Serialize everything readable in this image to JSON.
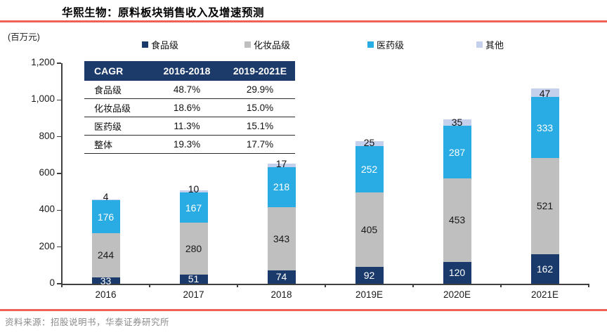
{
  "header": {
    "title": "华熙生物：原料板块销售收入及增速预测",
    "unit_label": "(百万元)"
  },
  "legend": [
    {
      "key": "food",
      "label": "食品级",
      "color": "#1a3a6b"
    },
    {
      "key": "cosmetic",
      "label": "化妆品级",
      "color": "#bfbfbf"
    },
    {
      "key": "pharma",
      "label": "医药级",
      "color": "#29abe3"
    },
    {
      "key": "other",
      "label": "其他",
      "color": "#c5d1ec"
    }
  ],
  "chart_data": {
    "type": "bar",
    "stacked": true,
    "title": "华熙生物：原料板块销售收入及增速预测",
    "xlabel": "",
    "ylabel": "(百万元)",
    "categories": [
      "2016",
      "2017",
      "2018",
      "2019E",
      "2020E",
      "2021E"
    ],
    "series": [
      {
        "key": "food",
        "name": "食品级",
        "color": "#1a3a6b",
        "label_color": "#ffffff",
        "values": [
          33,
          51,
          74,
          92,
          120,
          162
        ]
      },
      {
        "key": "cosmetic",
        "name": "化妆品级",
        "color": "#bfbfbf",
        "label_color": "#1a1a1a",
        "values": [
          244,
          280,
          343,
          405,
          453,
          521
        ]
      },
      {
        "key": "pharma",
        "name": "医药级",
        "color": "#29abe3",
        "label_color": "#ffffff",
        "values": [
          176,
          167,
          218,
          252,
          287,
          333
        ]
      },
      {
        "key": "other",
        "name": "其他",
        "color": "#c5d1ec",
        "label_color": "#111111",
        "values": [
          4,
          10,
          17,
          25,
          35,
          47
        ]
      }
    ],
    "totals": [
      457,
      508,
      652,
      774,
      895,
      1063
    ],
    "ylim": [
      0,
      1200
    ],
    "yticks": [
      0,
      200,
      400,
      600,
      800,
      1000,
      1200
    ],
    "ytick_labels": [
      "0",
      "200",
      "400",
      "600",
      "800",
      "1,000",
      "1,200"
    ],
    "grid": false,
    "legend_position": "top"
  },
  "cagr_table": {
    "header": [
      "CAGR",
      "2016-2018",
      "2019-2021E"
    ],
    "rows": [
      [
        "食品级",
        "48.7%",
        "29.9%"
      ],
      [
        "化妆品级",
        "18.6%",
        "15.0%"
      ],
      [
        "医药级",
        "11.3%",
        "15.1%"
      ],
      [
        "整体",
        "19.3%",
        "17.7%"
      ]
    ]
  },
  "footer": {
    "source": "资料来源：招股说明书，华泰证券研究所"
  },
  "colors": {
    "accent_red": "#ee6156",
    "table_header_bg": "#1c3a6a",
    "axis": "#3f3f3f",
    "source_text": "#8b8b8b"
  }
}
